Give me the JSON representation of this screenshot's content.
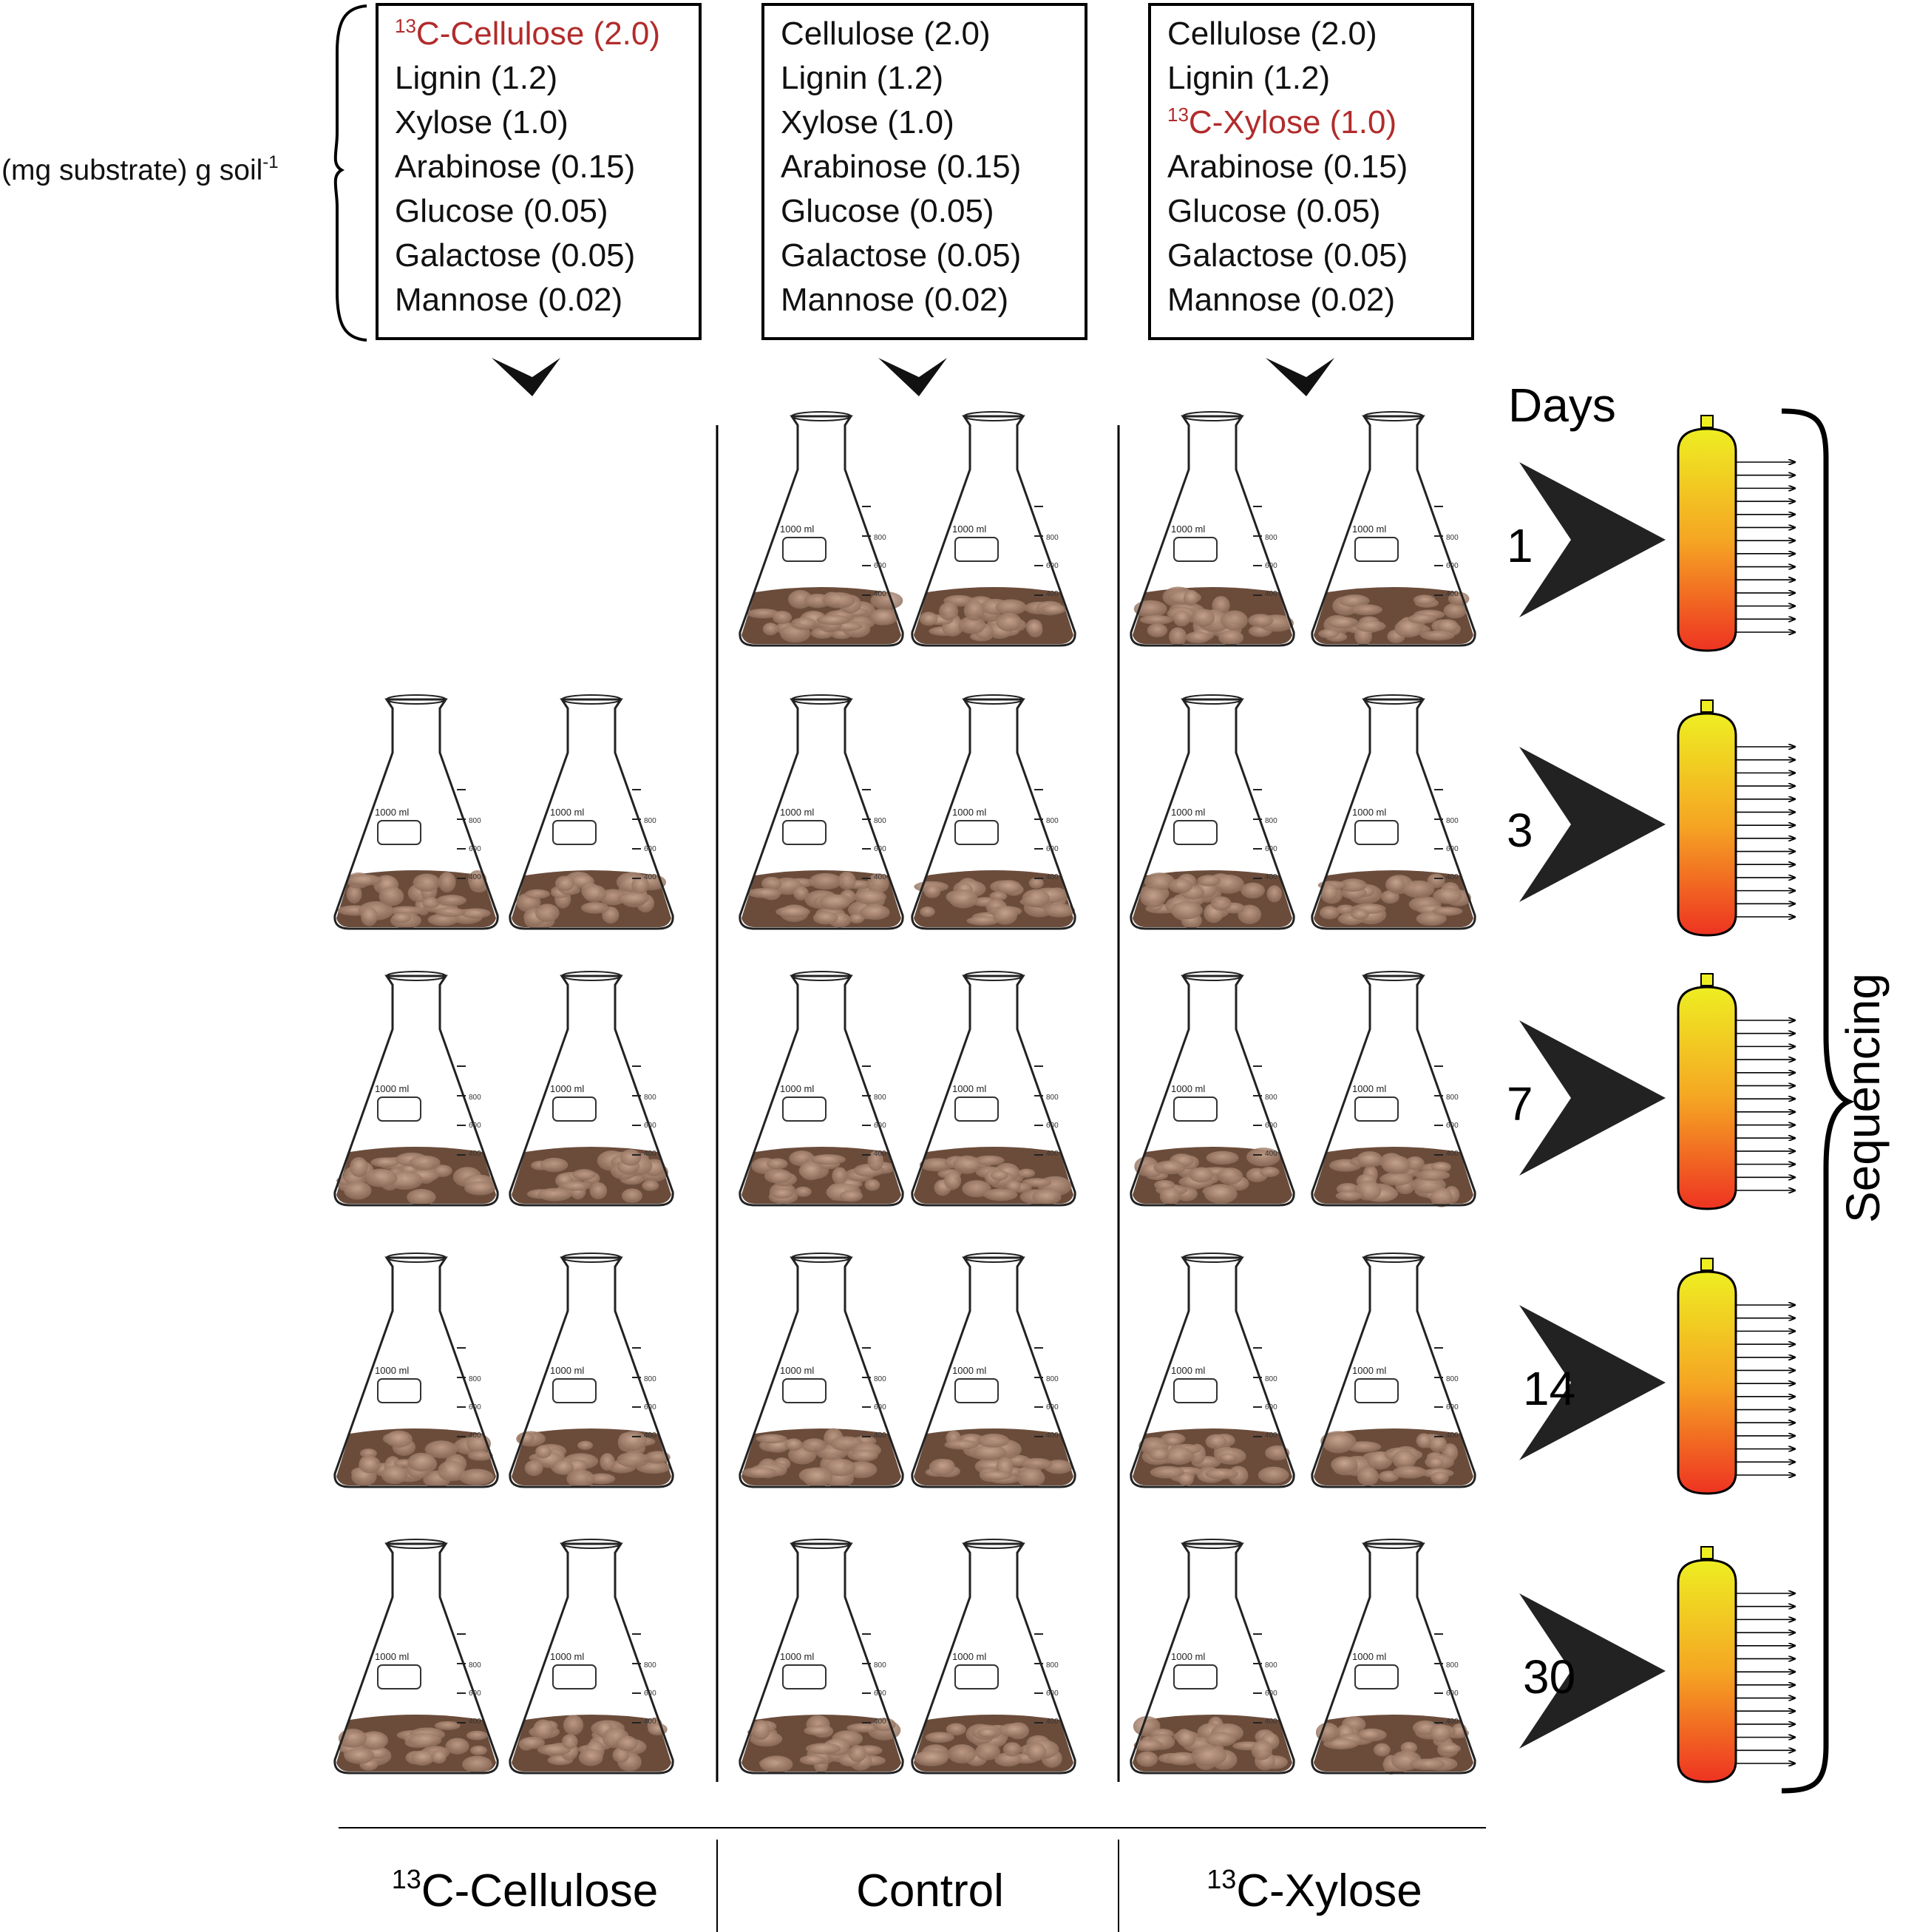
{
  "unit_label": {
    "main": "(mg substrate) g soil",
    "sup": "-1"
  },
  "boxes": [
    {
      "lines": [
        {
          "sup": "13",
          "text": "C-Cellulose (2.0)",
          "highlight": true
        },
        {
          "text": "Lignin (1.2)"
        },
        {
          "text": "Xylose (1.0)"
        },
        {
          "text": "Arabinose (0.15)"
        },
        {
          "text": "Glucose (0.05)"
        },
        {
          "text": "Galactose (0.05)"
        },
        {
          "text": "Mannose (0.02)"
        }
      ]
    },
    {
      "lines": [
        {
          "text": "Cellulose (2.0)"
        },
        {
          "text": "Lignin (1.2)"
        },
        {
          "text": "Xylose (1.0)"
        },
        {
          "text": "Arabinose (0.15)"
        },
        {
          "text": "Glucose (0.05)"
        },
        {
          "text": "Galactose (0.05)"
        },
        {
          "text": "Mannose (0.02)"
        }
      ]
    },
    {
      "lines": [
        {
          "text": "Cellulose (2.0)"
        },
        {
          "text": "Lignin (1.2)"
        },
        {
          "sup": "13",
          "text": "C-Xylose (1.0)",
          "highlight": true
        },
        {
          "text": "Arabinose (0.15)"
        },
        {
          "text": "Glucose (0.05)"
        },
        {
          "text": "Galactose (0.05)"
        },
        {
          "text": "Mannose (0.02)"
        }
      ]
    }
  ],
  "days_title": "Days",
  "days": [
    "1",
    "3",
    "7",
    "14",
    "30"
  ],
  "sequencing_label": "Sequencing",
  "columns": [
    {
      "sup": "13",
      "text": "C-Cellulose"
    },
    {
      "text": "Control"
    },
    {
      "sup": "13",
      "text": "C-Xylose"
    }
  ],
  "flask_label": "1000 ml",
  "flask_ticks": [
    "800",
    "600",
    "400"
  ],
  "colors": {
    "highlight": "#b22b2b",
    "tube_top": "#eeee22",
    "tube_bottom": "#ee3322",
    "soil": "#6b4c3b"
  }
}
